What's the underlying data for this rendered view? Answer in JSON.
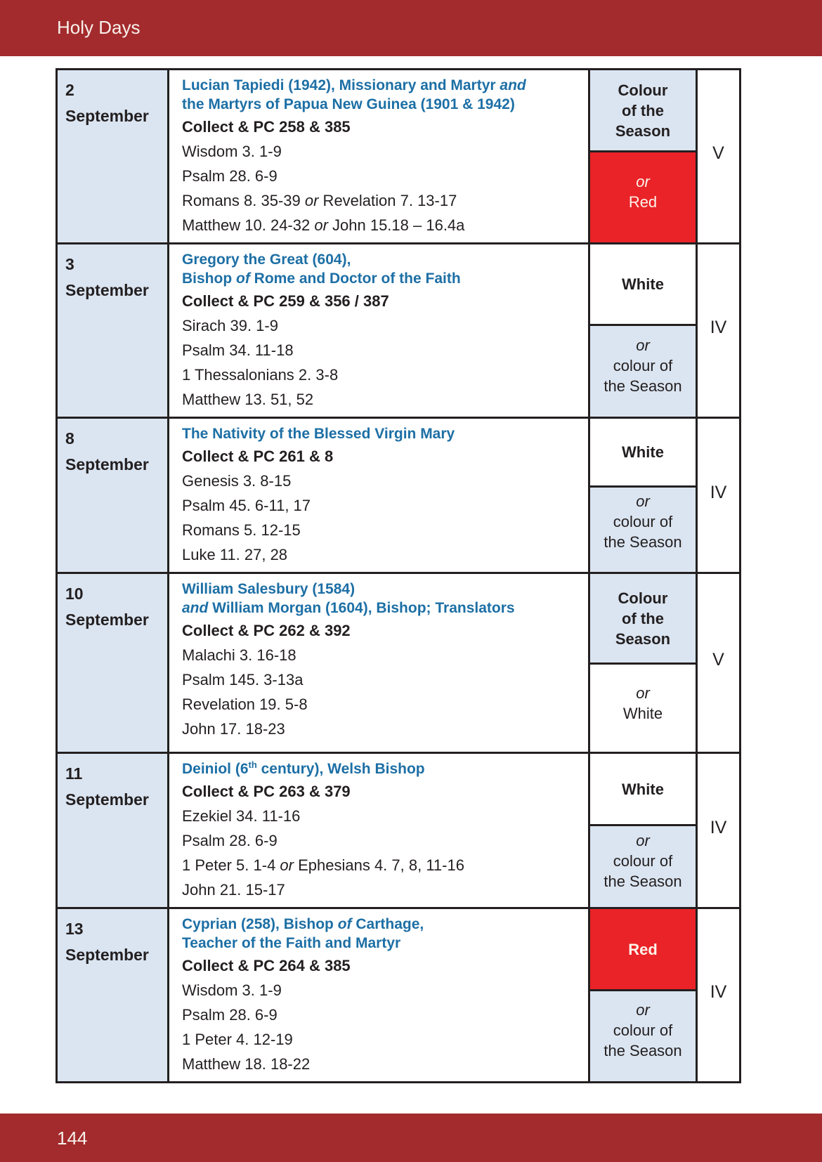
{
  "header": {
    "title": "Holy Days"
  },
  "footer": {
    "page_number": "144"
  },
  "colors": {
    "bar_red": "#A32B2D",
    "title_blue": "#1D6FA5",
    "season_light_blue": "#DBE5F1",
    "liturgical_red": "#EA2328",
    "ink_black": "#231F20"
  },
  "table": {
    "rows": [
      {
        "day": "2",
        "month": "September",
        "title_lines": [
          [
            [
              "",
              "Lucian Tapiedi (1942), Missionary and Martyr "
            ],
            [
              "i",
              "and"
            ]
          ],
          [
            [
              "",
              "the Martyrs of Papua New Guinea (1901 & 1942)"
            ]
          ]
        ],
        "collect": "Collect & PC 258 & 385",
        "readings": [
          [
            [
              "",
              "Wisdom 3. 1-9"
            ]
          ],
          [
            [
              "",
              "Psalm 28. 6-9"
            ]
          ],
          [
            [
              "",
              "Romans 8. 35-39 "
            ],
            [
              "i",
              "or"
            ],
            [
              "",
              " Revelation 7. 13-17"
            ]
          ],
          [
            [
              "",
              "Matthew 10. 24-32 "
            ],
            [
              "i",
              "or"
            ],
            [
              "",
              " John 15.18 – 16.4a"
            ]
          ]
        ],
        "colour_primary": {
          "bg": "light",
          "bold": true,
          "lines": [
            [
              [
                "",
                "Colour"
              ]
            ],
            [
              [
                "",
                "of the"
              ]
            ],
            [
              [
                "",
                "Season"
              ]
            ]
          ]
        },
        "colour_alternate": {
          "bg": "red",
          "bold": false,
          "lines": [
            [
              [
                "i",
                "or"
              ]
            ],
            [
              [
                "",
                "Red"
              ]
            ]
          ]
        },
        "numeral": "V"
      },
      {
        "day": "3",
        "month": "September",
        "title_lines": [
          [
            [
              "",
              "Gregory the Great (604),"
            ]
          ],
          [
            [
              "",
              "Bishop "
            ],
            [
              "i",
              "of"
            ],
            [
              "",
              " Rome and Doctor of the Faith"
            ]
          ]
        ],
        "collect": "Collect & PC 259 & 356 / 387",
        "readings": [
          [
            [
              "",
              "Sirach 39. 1-9"
            ]
          ],
          [
            [
              "",
              "Psalm 34. 11-18"
            ]
          ],
          [
            [
              "",
              "1 Thessalonians 2. 3-8"
            ]
          ],
          [
            [
              "",
              "Matthew 13. 51, 52"
            ]
          ]
        ],
        "colour_primary": {
          "bg": "white",
          "bold": true,
          "lines": [
            [
              [
                "",
                "White"
              ]
            ]
          ]
        },
        "colour_alternate": {
          "bg": "light",
          "bold": false,
          "lines": [
            [
              [
                "i",
                "or"
              ]
            ],
            [
              [
                "",
                "colour of"
              ]
            ],
            [
              [
                "",
                "the Season"
              ]
            ]
          ]
        },
        "numeral": "IV"
      },
      {
        "day": "8",
        "month": "September",
        "title_lines": [
          [
            [
              "",
              "The Nativity of the Blessed Virgin Mary"
            ]
          ]
        ],
        "collect": "Collect & PC 261 & 8",
        "readings": [
          [
            [
              "",
              "Genesis 3. 8-15"
            ]
          ],
          [
            [
              "",
              "Psalm 45. 6-11, 17"
            ]
          ],
          [
            [
              "",
              "Romans 5. 12-15"
            ]
          ],
          [
            [
              "",
              "Luke 11. 27, 28"
            ]
          ]
        ],
        "colour_primary": {
          "bg": "white",
          "bold": true,
          "lines": [
            [
              [
                "",
                "White"
              ]
            ]
          ]
        },
        "colour_alternate": {
          "bg": "light",
          "bold": false,
          "lines": [
            [
              [
                "i",
                "or"
              ]
            ],
            [
              [
                "",
                "colour of"
              ]
            ],
            [
              [
                "",
                "the Season"
              ]
            ]
          ]
        },
        "numeral": "IV"
      },
      {
        "day": "10",
        "month": "September",
        "title_lines": [
          [
            [
              "",
              "William Salesbury (1584)"
            ]
          ],
          [
            [
              "i",
              "and"
            ],
            [
              "",
              " William Morgan (1604), Bishop; Translators"
            ]
          ]
        ],
        "collect": "Collect & PC 262 & 392",
        "readings": [
          [
            [
              "",
              "Malachi 3. 16-18"
            ]
          ],
          [
            [
              "",
              "Psalm 145. 3-13a"
            ]
          ],
          [
            [
              "",
              "Revelation 19. 5-8"
            ]
          ],
          [
            [
              "",
              "John 17. 18-23"
            ]
          ]
        ],
        "colour_primary": {
          "bg": "light",
          "bold": true,
          "lines": [
            [
              [
                "",
                "Colour"
              ]
            ],
            [
              [
                "",
                "of the"
              ]
            ],
            [
              [
                "",
                "Season"
              ]
            ]
          ]
        },
        "colour_alternate": {
          "bg": "white",
          "bold": false,
          "lines": [
            [
              [
                "i",
                "or"
              ]
            ],
            [
              [
                "",
                "White"
              ]
            ]
          ]
        },
        "numeral": "V"
      },
      {
        "day": "11",
        "month": "September",
        "title_lines": [
          [
            [
              "",
              "Deiniol (6"
            ],
            [
              "sup",
              "th"
            ],
            [
              "",
              " century), Welsh Bishop"
            ]
          ]
        ],
        "collect": "Collect & PC 263 & 379",
        "readings": [
          [
            [
              "",
              "Ezekiel 34. 11-16"
            ]
          ],
          [
            [
              "",
              "Psalm 28. 6-9"
            ]
          ],
          [
            [
              "",
              "1 Peter 5. 1-4 "
            ],
            [
              "i",
              "or"
            ],
            [
              "",
              " Ephesians 4. 7, 8, 11-16"
            ]
          ],
          [
            [
              "",
              "John 21. 15-17"
            ]
          ]
        ],
        "colour_primary": {
          "bg": "white",
          "bold": true,
          "lines": [
            [
              [
                "",
                "White"
              ]
            ]
          ]
        },
        "colour_alternate": {
          "bg": "light",
          "bold": false,
          "lines": [
            [
              [
                "i",
                "or"
              ]
            ],
            [
              [
                "",
                "colour of"
              ]
            ],
            [
              [
                "",
                "the Season"
              ]
            ]
          ]
        },
        "numeral": "IV"
      },
      {
        "day": "13",
        "month": "September",
        "title_lines": [
          [
            [
              "",
              "Cyprian (258), Bishop "
            ],
            [
              "i",
              "of"
            ],
            [
              "",
              " Carthage,"
            ]
          ],
          [
            [
              "",
              "Teacher of the Faith and Martyr"
            ]
          ]
        ],
        "collect": "Collect & PC 264 & 385",
        "readings": [
          [
            [
              "",
              "Wisdom 3. 1-9"
            ]
          ],
          [
            [
              "",
              "Psalm 28. 6-9"
            ]
          ],
          [
            [
              "",
              "1 Peter 4. 12-19"
            ]
          ],
          [
            [
              "",
              "Matthew 18. 18-22"
            ]
          ]
        ],
        "colour_primary": {
          "bg": "red",
          "bold": true,
          "lines": [
            [
              [
                "",
                "Red"
              ]
            ]
          ]
        },
        "colour_alternate": {
          "bg": "light",
          "bold": false,
          "lines": [
            [
              [
                "i",
                "or"
              ]
            ],
            [
              [
                "",
                "colour of"
              ]
            ],
            [
              [
                "",
                "the Season"
              ]
            ]
          ]
        },
        "numeral": "IV"
      }
    ]
  }
}
